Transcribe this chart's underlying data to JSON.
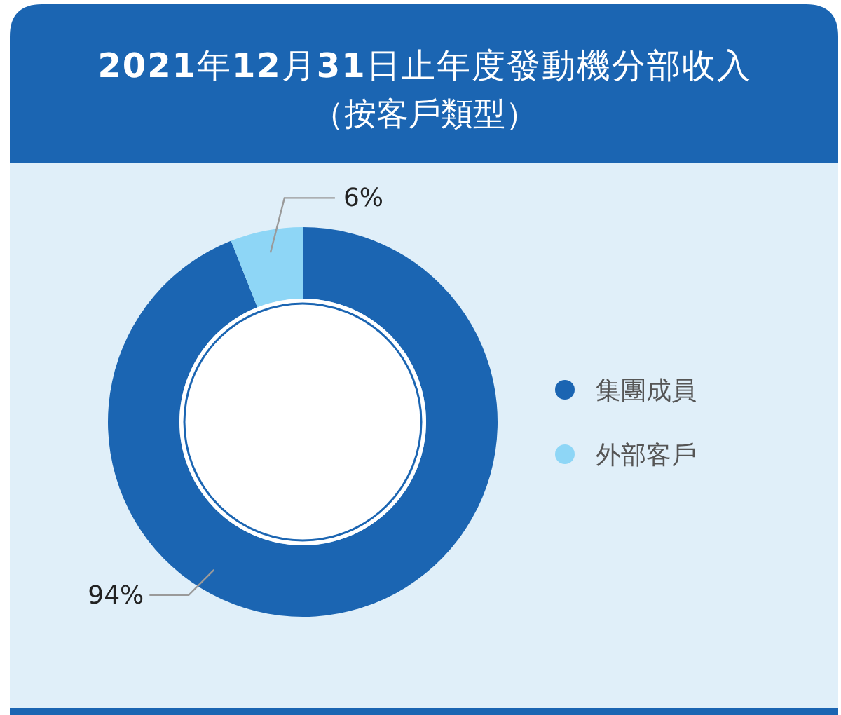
{
  "chart_data": {
    "type": "donut",
    "title": "2021年12月31日止年度發動機分部收入",
    "subtitle": "（按客戶類型）",
    "categories": [
      "集團成員",
      "外部客戶"
    ],
    "values": [
      94,
      6
    ],
    "colors": [
      "#1b65b2",
      "#8ed6f6"
    ],
    "value_labels": [
      "94%",
      "6%"
    ],
    "legend": "right"
  }
}
